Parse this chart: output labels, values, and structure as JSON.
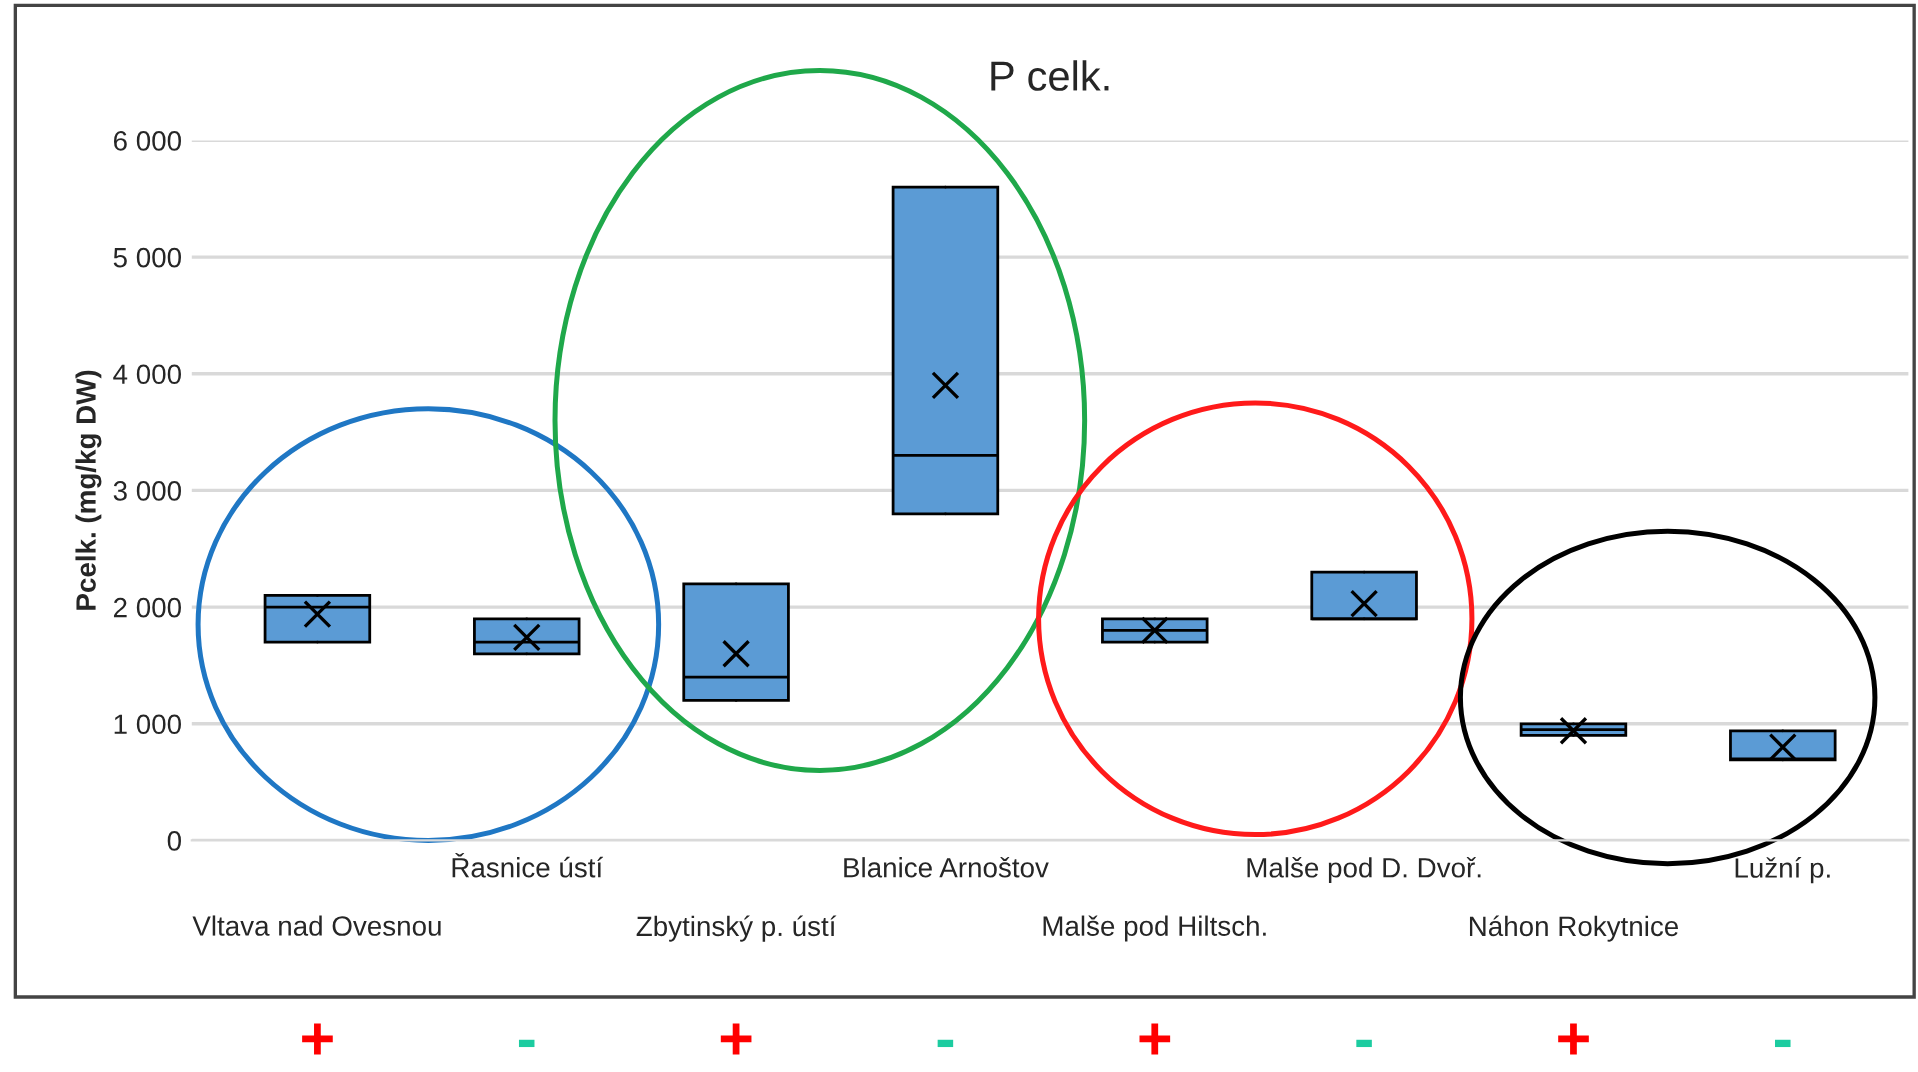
{
  "chart_data": {
    "type": "box",
    "title": "P celk.",
    "ylabel": "Pcelk. (mg/kg DW)",
    "categories": [
      "Vltava nad Ovesnou",
      "Řasnice ústí",
      "Zbytinský p. ústí",
      "Blanice Arnoštov",
      "Malše pod Hiltsch.",
      "Malše pod D. Dvoř.",
      "Náhon Rokytnice",
      "Lužní p."
    ],
    "color": "#5b9bd5",
    "boxes": [
      {
        "low": 1700,
        "q1": 1700,
        "median": 2000,
        "q3": 2100,
        "high": 2100,
        "mean": 1940
      },
      {
        "low": 1600,
        "q1": 1600,
        "median": 1700,
        "q3": 1900,
        "high": 1900,
        "mean": 1740
      },
      {
        "low": 1200,
        "q1": 1200,
        "median": 1400,
        "q3": 2200,
        "high": 2200,
        "mean": 1600
      },
      {
        "low": 2800,
        "q1": 2800,
        "median": 3300,
        "q3": 5600,
        "high": 5600,
        "mean": 3900
      },
      {
        "low": 1700,
        "q1": 1700,
        "median": 1800,
        "q3": 1900,
        "high": 1900,
        "mean": 1800
      },
      {
        "low": 1900,
        "q1": 1900,
        "median": 1900,
        "q3": 2300,
        "high": 2300,
        "mean": 2030
      },
      {
        "low": 900,
        "q1": 900,
        "median": 950,
        "q3": 1000,
        "high": 1000,
        "mean": 940
      },
      {
        "low": 690,
        "q1": 690,
        "median": 700,
        "q3": 940,
        "high": 940,
        "mean": 800
      }
    ],
    "ylim": [
      0,
      6000
    ],
    "yticks": [
      {
        "value": 0,
        "label": "0"
      },
      {
        "value": 1000,
        "label": "1 000"
      },
      {
        "value": 2000,
        "label": "2 000"
      },
      {
        "value": 3000,
        "label": "3 000"
      },
      {
        "value": 4000,
        "label": "4 000"
      },
      {
        "value": 5000,
        "label": "5 000"
      },
      {
        "value": 6000,
        "label": "6 000"
      }
    ],
    "grid": "y",
    "annotations": [
      "+",
      "-",
      "+",
      "-",
      "+",
      "-",
      "+",
      "-"
    ]
  }
}
